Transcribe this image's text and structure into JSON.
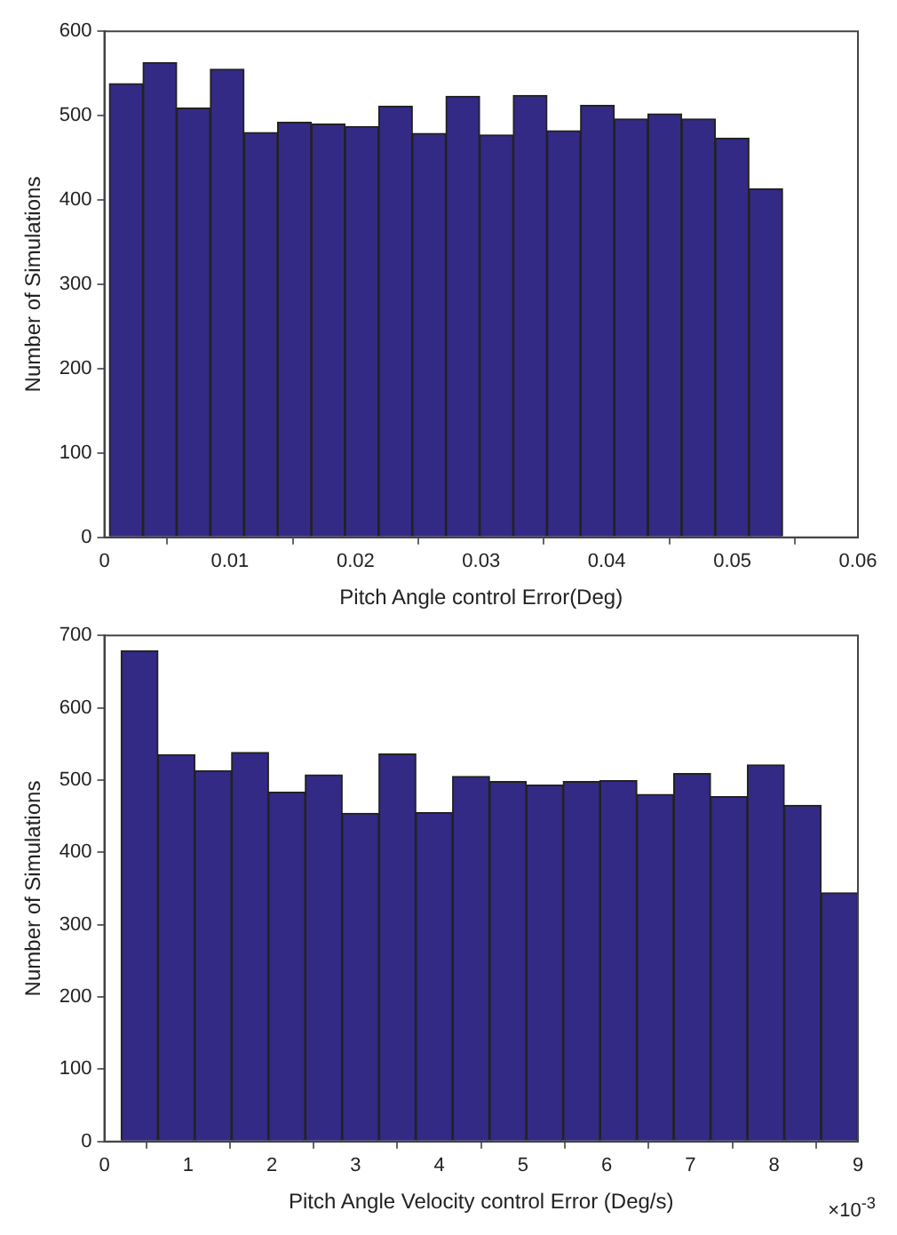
{
  "chart_data": [
    {
      "type": "histogram",
      "xlabel": "Pitch Angle control Error(Deg)",
      "ylabel": "Number of Simulations",
      "color": "#332a86",
      "bins": [
        0.0004,
        0.00308,
        0.00576,
        0.00844,
        0.01112,
        0.0138,
        0.01648,
        0.01916,
        0.02184,
        0.02452,
        0.0272,
        0.02988,
        0.03256,
        0.03524,
        0.03792,
        0.0406,
        0.04328,
        0.04596,
        0.04864,
        0.05132,
        0.054
      ],
      "values": [
        538,
        563,
        509,
        555,
        480,
        492,
        490,
        487,
        511,
        479,
        523,
        477,
        524,
        482,
        512,
        496,
        502,
        496,
        473,
        413
      ],
      "xlim": [
        0,
        0.06
      ],
      "xticks": [
        0,
        0.01,
        0.02,
        0.03,
        0.04,
        0.05,
        0.06
      ],
      "ylim": [
        0,
        600
      ],
      "yticks": [
        0,
        100,
        200,
        300,
        400,
        500,
        600
      ],
      "grid": false
    },
    {
      "type": "histogram",
      "xlabel": "Pitch Angle Velocity control Error (Deg/s)",
      "ylabel": "Number of Simulations",
      "color": "#332a86",
      "bins": [
        0.2,
        0.64,
        1.08,
        1.52,
        1.96,
        2.4,
        2.84,
        3.28,
        3.72,
        4.16,
        4.6,
        5.04,
        5.48,
        5.92,
        6.36,
        6.8,
        7.24,
        7.68,
        8.12,
        8.56,
        9.0
      ],
      "values": [
        679,
        535,
        513,
        538,
        483,
        507,
        454,
        536,
        455,
        505,
        498,
        493,
        498,
        499,
        480,
        509,
        477,
        521,
        465,
        344
      ],
      "xlim": [
        0,
        9
      ],
      "xticks": [
        0,
        1,
        2,
        3,
        4,
        5,
        6,
        7,
        8,
        9
      ],
      "ylim": [
        0,
        700
      ],
      "yticks": [
        0,
        100,
        200,
        300,
        400,
        500,
        600,
        700
      ],
      "grid": false,
      "annotations": [
        "×10$^{-3}$"
      ]
    }
  ]
}
